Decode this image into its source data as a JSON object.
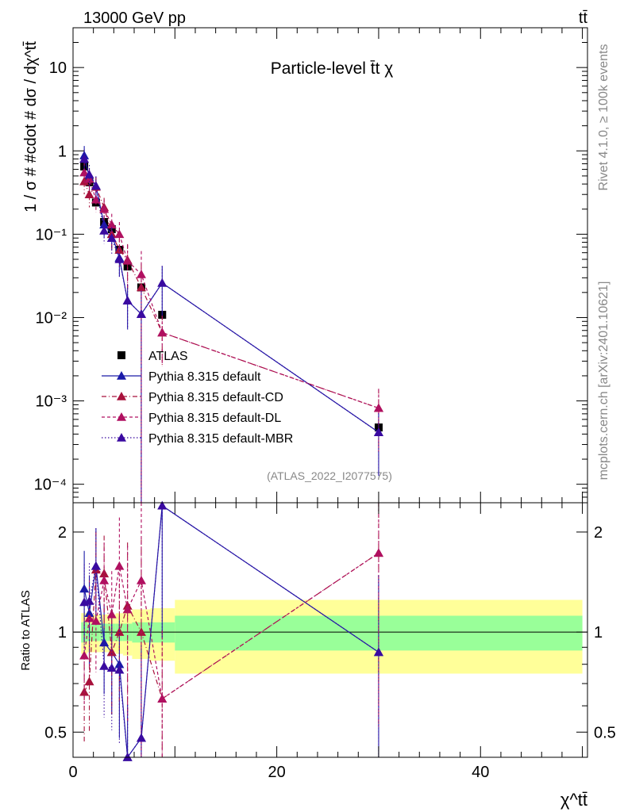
{
  "header": {
    "energy_label": "13000 GeV pp",
    "process_label": "tt̄",
    "panel_title": "Particle-level t̄t χ",
    "rivet_label": "Rivet 4.1.0, ≥ 100k events",
    "mcplots_label": "mcplots.cern.ch [arXiv:2401.10621]",
    "analysis_label": "(ATLAS_2022_I2077575)"
  },
  "colors": {
    "data": "#000000",
    "pythia_default": "#1a1aa8",
    "pythia_cd": "#a8123c",
    "pythia_dl": "#b01060",
    "pythia_mbr": "#3a0aa0",
    "band_inner": "#99ff99",
    "band_outer": "#ffff99"
  },
  "chart_data": [
    {
      "type": "scatter",
      "title": "Particle-level t̄t χ",
      "xlabel": "χ^tt̄",
      "ylabel": "1 / σ # #cdot # dσ / dχ^tt̄",
      "yscale": "log",
      "xlim": [
        0,
        50.5
      ],
      "ylim": [
        6e-05,
        30
      ],
      "y_ticks": [
        {
          "value": 10,
          "label": "10"
        },
        {
          "value": 1,
          "label": "1"
        },
        {
          "value": 0.1,
          "label": "10⁻¹"
        },
        {
          "value": 0.01,
          "label": "10⁻²"
        },
        {
          "value": 0.001,
          "label": "10⁻³"
        },
        {
          "value": 0.0001,
          "label": "10⁻⁴"
        }
      ],
      "legend_position": "center-left",
      "x": [
        1.1,
        1.6,
        2.25,
        3.05,
        3.8,
        4.55,
        5.35,
        6.7,
        8.75,
        30.0
      ],
      "series": [
        {
          "name": "ATLAS",
          "style": "square",
          "color_key": "data",
          "values": [
            0.65,
            0.42,
            0.24,
            0.14,
            0.115,
            0.065,
            0.041,
            0.023,
            0.0108,
            0.00048
          ]
        },
        {
          "name": "Pythia 8.315 default",
          "style": "solid",
          "color_key": "pythia_default",
          "values": [
            0.88,
            0.48,
            0.38,
            0.13,
            0.1,
            0.052,
            0.016,
            0.011,
            0.026,
            0.00042
          ]
        },
        {
          "name": "Pythia 8.315 default-CD",
          "style": "dashdot",
          "color_key": "pythia_cd",
          "values": [
            0.43,
            0.3,
            0.37,
            0.21,
            0.1,
            0.065,
            0.049,
            0.023,
            0.0066,
            0.00082
          ]
        },
        {
          "name": "Pythia 8.315 default-DL",
          "style": "dashed",
          "color_key": "pythia_dl",
          "values": [
            0.55,
            0.46,
            0.26,
            0.2,
            0.13,
            0.1,
            0.048,
            0.033,
            0.0066,
            0.00082
          ]
        },
        {
          "name": "Pythia 8.315 default-MBR",
          "style": "dotted",
          "color_key": "pythia_mbr",
          "values": [
            0.8,
            0.52,
            0.38,
            0.11,
            0.09,
            0.05,
            0.016,
            0.011,
            0.026,
            0.00042
          ]
        }
      ]
    },
    {
      "type": "scatter",
      "xlabel": "χ^tt̄",
      "ylabel": "Ratio to ATLAS",
      "yscale": "log",
      "xlim": [
        0,
        50.5
      ],
      "ylim": [
        0.42,
        2.45
      ],
      "x_ticks": [
        {
          "value": 0,
          "label": "0"
        },
        {
          "value": 20,
          "label": "20"
        },
        {
          "value": 40,
          "label": "40"
        }
      ],
      "y_ticks": [
        {
          "value": 2,
          "label": "2"
        },
        {
          "value": 1,
          "label": "1"
        },
        {
          "value": 0.5,
          "label": "0.5"
        }
      ],
      "band_edges": [
        0.8,
        1.4,
        1.9,
        2.6,
        3.4,
        4.2,
        4.9,
        5.8,
        7.6,
        10.0,
        50.0
      ],
      "band_inner": [
        0.07,
        0.06,
        0.06,
        0.06,
        0.06,
        0.06,
        0.06,
        0.07,
        0.07,
        0.12
      ],
      "band_outer": [
        0.14,
        0.13,
        0.13,
        0.13,
        0.13,
        0.14,
        0.15,
        0.17,
        0.18,
        0.25
      ],
      "x": [
        1.1,
        1.6,
        2.25,
        3.05,
        3.8,
        4.55,
        5.35,
        6.7,
        8.75,
        30.0
      ],
      "series": [
        {
          "name": "Pythia 8.315 default",
          "color_key": "pythia_default",
          "values": [
            1.35,
            1.14,
            1.58,
            0.93,
            0.87,
            0.8,
            0.39,
            0.48,
            2.4,
            0.87
          ]
        },
        {
          "name": "Pythia 8.315 default-CD",
          "color_key": "pythia_cd",
          "values": [
            0.66,
            0.71,
            1.54,
            1.5,
            0.87,
            1.0,
            1.2,
            1.0,
            0.63,
            1.73
          ]
        },
        {
          "name": "Pythia 8.315 default-DL",
          "color_key": "pythia_dl",
          "values": [
            0.85,
            1.1,
            1.08,
            1.43,
            1.13,
            1.58,
            1.17,
            1.43,
            0.63,
            1.73
          ]
        },
        {
          "name": "Pythia 8.315 default-MBR",
          "color_key": "pythia_mbr",
          "values": [
            1.23,
            1.24,
            1.58,
            0.79,
            0.78,
            0.77,
            0.39,
            0.48,
            2.4,
            0.87
          ]
        }
      ]
    }
  ]
}
